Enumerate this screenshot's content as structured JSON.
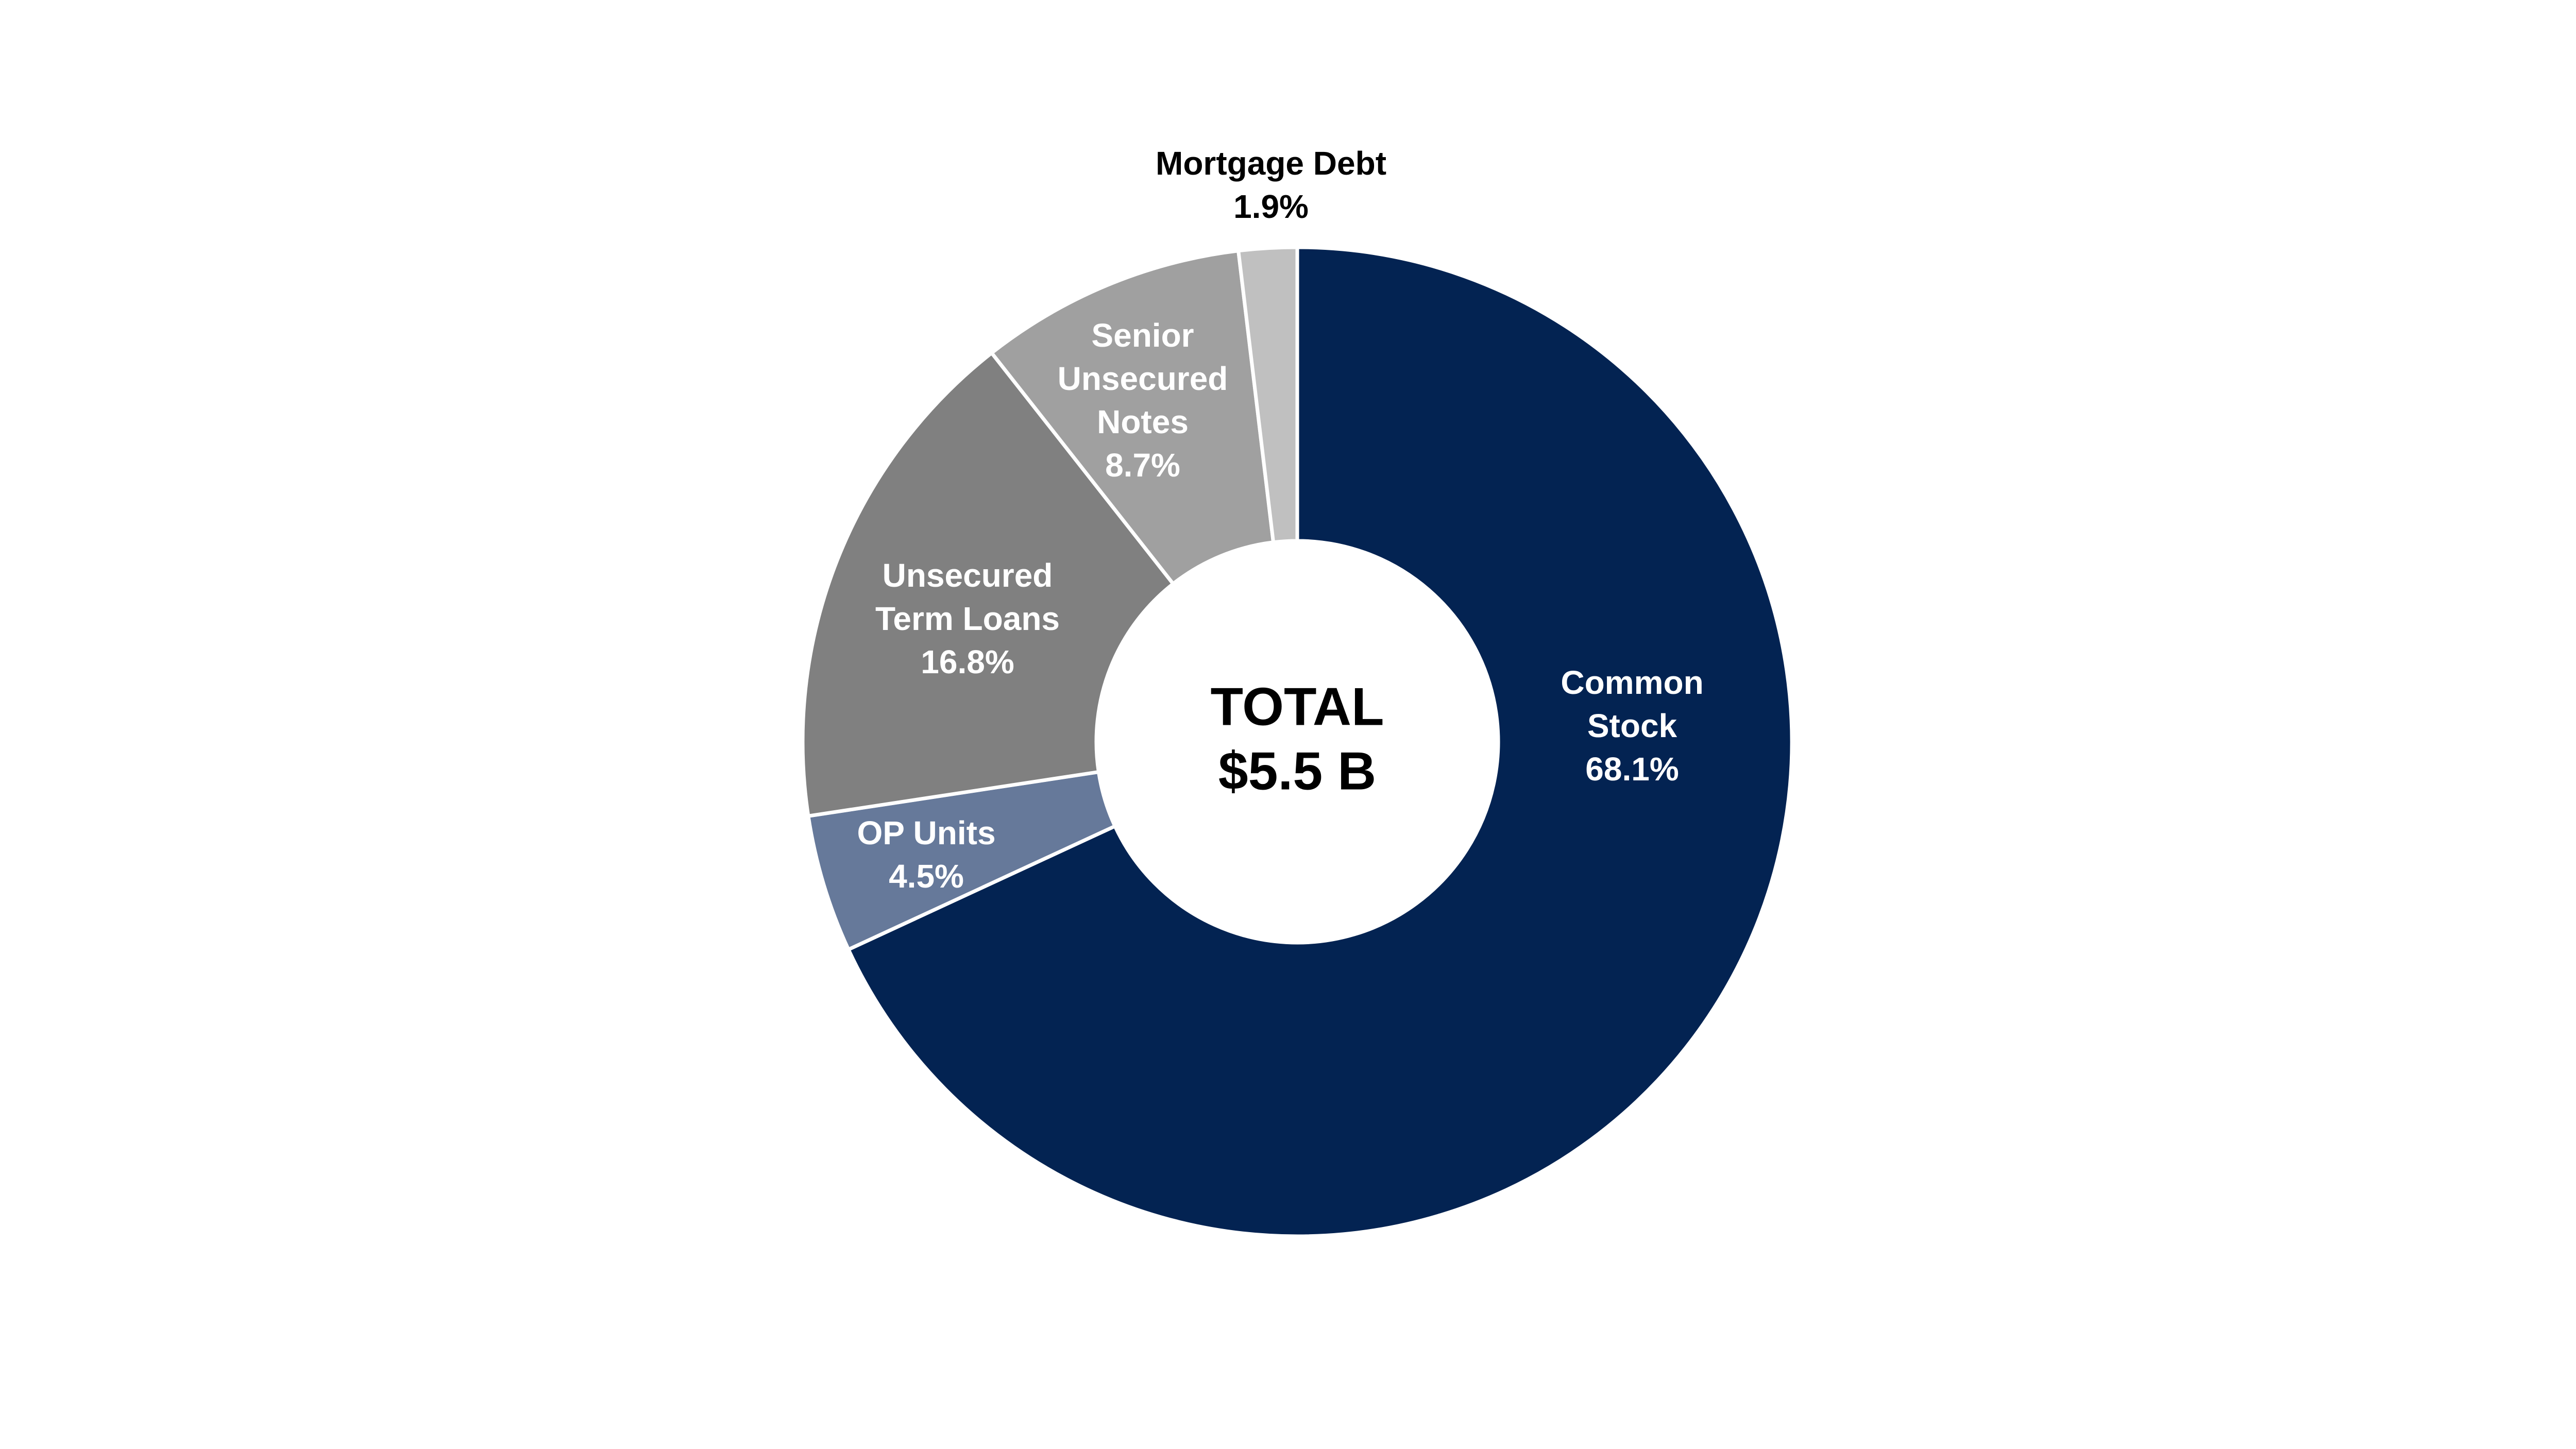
{
  "chart_data": {
    "type": "donut",
    "categories": [
      "Common Stock",
      "OP Units",
      "Unsecured Term Loans",
      "Senior Unsecured Notes",
      "Mortgage Debt"
    ],
    "values": [
      68.1,
      4.5,
      16.8,
      8.7,
      1.9
    ],
    "value_labels": [
      "68.1%",
      "4.5%",
      "16.8%",
      "8.7%",
      "1.9%"
    ],
    "colors": [
      "#032352",
      "#66799a",
      "#808080",
      "#a0a0a0",
      "#c0c0c0"
    ],
    "center_text": [
      "TOTAL",
      "$5.5 B"
    ]
  }
}
